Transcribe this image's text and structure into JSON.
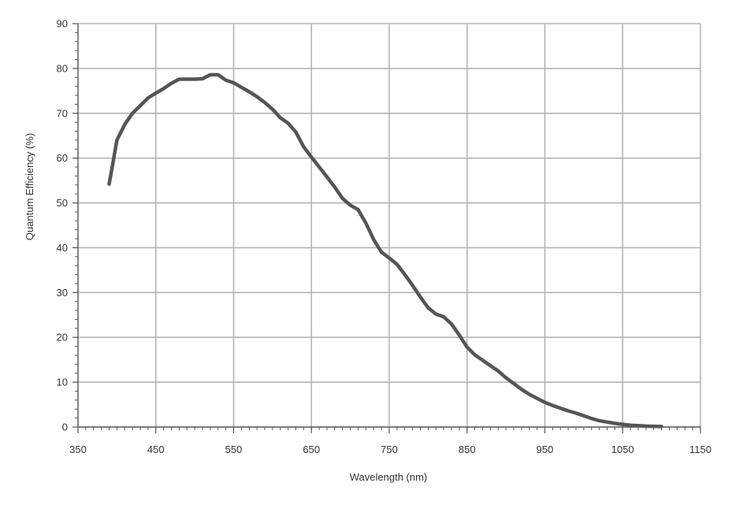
{
  "chart_data": {
    "type": "line",
    "xlabel": "Wavelength (nm)",
    "ylabel": "Quantum Efficiency (%)",
    "xlim": [
      350,
      1150
    ],
    "ylim": [
      0,
      90
    ],
    "xticks": [
      350,
      450,
      550,
      650,
      750,
      850,
      950,
      1050,
      1150
    ],
    "yticks": [
      0,
      10,
      20,
      30,
      40,
      50,
      60,
      70,
      80,
      90
    ],
    "grid": true,
    "legend": "none",
    "colors": {
      "line": "#555555",
      "grid": "#b4b4b4",
      "axis": "#555555"
    },
    "series": [
      {
        "x": [
          390,
          395,
          400,
          410,
          420,
          430,
          440,
          450,
          460,
          470,
          480,
          490,
          500,
          510,
          520,
          530,
          540,
          550,
          560,
          570,
          580,
          590,
          600,
          610,
          620,
          630,
          640,
          650,
          660,
          670,
          680,
          690,
          700,
          710,
          720,
          730,
          740,
          750,
          760,
          770,
          780,
          790,
          800,
          810,
          820,
          830,
          840,
          850,
          860,
          870,
          880,
          890,
          900,
          910,
          920,
          930,
          940,
          950,
          960,
          970,
          980,
          990,
          1000,
          1010,
          1020,
          1030,
          1040,
          1050,
          1060,
          1070,
          1080,
          1090,
          1100
        ],
        "y": [
          54.2,
          59,
          64,
          67.5,
          70,
          71.7,
          73.4,
          74.5,
          75.5,
          76.7,
          77.6,
          77.6,
          77.6,
          77.7,
          78.6,
          78.6,
          77.4,
          76.8,
          75.8,
          74.8,
          73.7,
          72.4,
          70.9,
          69,
          67.8,
          65.8,
          62.5,
          60.2,
          58,
          55.8,
          53.5,
          51,
          49.5,
          48.5,
          45.5,
          41.8,
          39,
          37.7,
          36.3,
          34,
          31.6,
          29,
          26.6,
          25.2,
          24.6,
          23,
          20.5,
          17.8,
          16.1,
          14.9,
          13.7,
          12.5,
          11,
          9.7,
          8.4,
          7.3,
          6.4,
          5.5,
          4.8,
          4.2,
          3.6,
          3.1,
          2.5,
          1.9,
          1.4,
          1.1,
          0.8,
          0.6,
          0.4,
          0.3,
          0.2,
          0.15,
          0.1
        ]
      }
    ]
  }
}
